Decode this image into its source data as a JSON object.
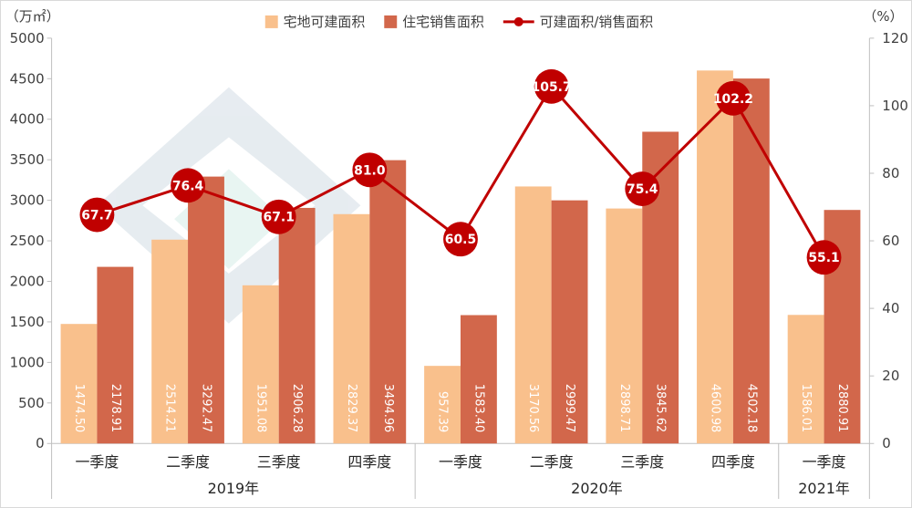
{
  "chart_data": {
    "type": "bar",
    "y_left_unit": "（万㎡）",
    "y_right_unit": "（%）",
    "ylim_left": [
      0,
      5000
    ],
    "ylim_right": [
      0,
      120
    ],
    "yticks_left": [
      "0",
      "500",
      "1000",
      "1500",
      "2000",
      "2500",
      "3000",
      "3500",
      "4000",
      "4500",
      "5000"
    ],
    "yticks_right": [
      "0",
      "20",
      "40",
      "60",
      "80",
      "100",
      "120"
    ],
    "categories": [
      "一季度",
      "二季度",
      "三季度",
      "四季度",
      "一季度",
      "二季度",
      "三季度",
      "四季度",
      "一季度"
    ],
    "years": [
      {
        "label": "2019年",
        "start": 0,
        "end": 3
      },
      {
        "label": "2020年",
        "start": 4,
        "end": 7
      },
      {
        "label": "2021年",
        "start": 8,
        "end": 8
      }
    ],
    "series": [
      {
        "name": "宅地可建面积",
        "kind": "bar",
        "axis": "left",
        "color": "#f9c08c",
        "values": [
          1474.5,
          2514.21,
          1951.08,
          2829.37,
          957.39,
          3170.56,
          2898.71,
          4600.98,
          1586.01
        ],
        "labels": [
          "1474.50",
          "2514.21",
          "1951.08",
          "2829.37",
          "957.39",
          "3170.56",
          "2898.71",
          "4600.98",
          "1586.01"
        ]
      },
      {
        "name": "住宅销售面积",
        "kind": "bar",
        "axis": "left",
        "color": "#d2674b",
        "values": [
          2178.91,
          3292.47,
          2906.28,
          3494.96,
          1583.4,
          2999.47,
          3845.62,
          4502.18,
          2880.91
        ],
        "labels": [
          "2178.91",
          "3292.47",
          "2906.28",
          "3494.96",
          "1583.40",
          "2999.47",
          "3845.62",
          "4502.18",
          "2880.91"
        ]
      },
      {
        "name": "可建面积/销售面积",
        "kind": "line",
        "axis": "right",
        "color": "#c00000",
        "values": [
          67.7,
          76.4,
          67.1,
          81.0,
          60.5,
          105.7,
          75.4,
          102.2,
          55.1
        ],
        "labels": [
          "67.7",
          "76.4",
          "67.1",
          "81.0",
          "60.5",
          "105.7",
          "75.4",
          "102.2",
          "55.1"
        ]
      }
    ],
    "legend_position": "top-center",
    "grid": false
  }
}
